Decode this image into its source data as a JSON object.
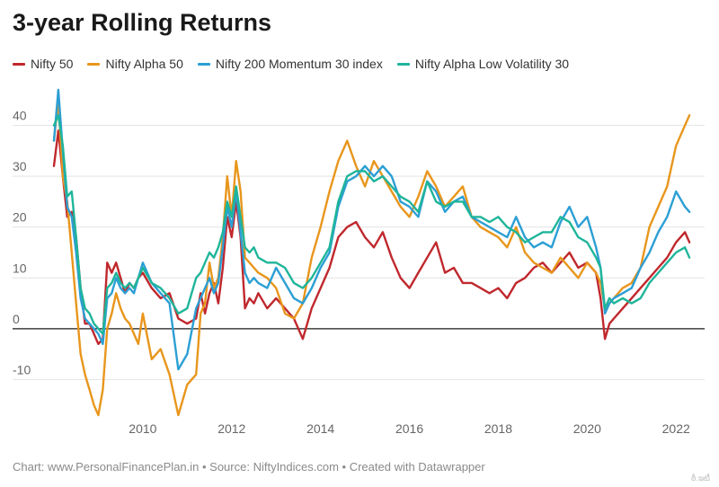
{
  "chart_data": {
    "type": "line",
    "title": "3-year Rolling Returns",
    "xlabel": "",
    "ylabel": "",
    "xlim": [
      2008.0,
      2022.4
    ],
    "ylim": [
      -17,
      47
    ],
    "yticks": [
      -10,
      0,
      10,
      20,
      30,
      40
    ],
    "xticks": [
      2010,
      2012,
      2014,
      2016,
      2018,
      2020,
      2022
    ],
    "grid": true,
    "legend_position": "top-left",
    "series": [
      {
        "name": "Nifty 50",
        "color": "#c0282d",
        "x": [
          2008.0,
          2008.1,
          2008.2,
          2008.3,
          2008.4,
          2008.5,
          2008.6,
          2008.7,
          2008.8,
          2008.9,
          2009.0,
          2009.1,
          2009.2,
          2009.3,
          2009.4,
          2009.5,
          2009.6,
          2009.7,
          2009.8,
          2009.9,
          2010.0,
          2010.2,
          2010.4,
          2010.6,
          2010.8,
          2011.0,
          2011.2,
          2011.3,
          2011.4,
          2011.5,
          2011.6,
          2011.7,
          2011.8,
          2011.9,
          2012.0,
          2012.1,
          2012.2,
          2012.3,
          2012.4,
          2012.5,
          2012.6,
          2012.8,
          2013.0,
          2013.2,
          2013.4,
          2013.6,
          2013.8,
          2014.0,
          2014.2,
          2014.4,
          2014.6,
          2014.8,
          2015.0,
          2015.2,
          2015.4,
          2015.6,
          2015.8,
          2016.0,
          2016.2,
          2016.4,
          2016.6,
          2016.8,
          2017.0,
          2017.2,
          2017.4,
          2017.6,
          2017.8,
          2018.0,
          2018.2,
          2018.4,
          2018.6,
          2018.8,
          2019.0,
          2019.2,
          2019.4,
          2019.6,
          2019.8,
          2020.0,
          2020.2,
          2020.3,
          2020.4,
          2020.5,
          2020.6,
          2020.8,
          2021.0,
          2021.2,
          2021.4,
          2021.6,
          2021.8,
          2022.0,
          2022.2,
          2022.3
        ],
        "values": [
          32,
          39,
          30,
          22,
          23,
          18,
          8,
          1,
          1,
          -1,
          -3,
          -2,
          13,
          11,
          13,
          10,
          7,
          9,
          8,
          10,
          11,
          8,
          6,
          7,
          2,
          1,
          2,
          7,
          3,
          7,
          9,
          5,
          12,
          22,
          18,
          25,
          18,
          4,
          6,
          5,
          7,
          4,
          6,
          4,
          2,
          -2,
          4,
          8,
          12,
          18,
          20,
          21,
          18,
          16,
          19,
          14,
          10,
          8,
          11,
          14,
          17,
          11,
          12,
          9,
          9,
          8,
          7,
          8,
          6,
          9,
          10,
          12,
          13,
          11,
          13,
          15,
          12,
          13,
          11,
          6,
          -2,
          1,
          2,
          4,
          6,
          8,
          10,
          12,
          14,
          17,
          19,
          17
        ]
      },
      {
        "name": "Nifty Alpha 50",
        "color": "#e8961c",
        "x": [
          2008.0,
          2008.1,
          2008.2,
          2008.3,
          2008.4,
          2008.5,
          2008.6,
          2008.7,
          2008.8,
          2008.9,
          2009.0,
          2009.1,
          2009.2,
          2009.3,
          2009.4,
          2009.5,
          2009.6,
          2009.7,
          2009.8,
          2009.9,
          2010.0,
          2010.2,
          2010.4,
          2010.6,
          2010.8,
          2011.0,
          2011.2,
          2011.3,
          2011.4,
          2011.5,
          2011.6,
          2011.7,
          2011.8,
          2011.9,
          2012.0,
          2012.1,
          2012.2,
          2012.3,
          2012.4,
          2012.5,
          2012.6,
          2012.8,
          2013.0,
          2013.2,
          2013.4,
          2013.6,
          2013.8,
          2014.0,
          2014.2,
          2014.4,
          2014.6,
          2014.8,
          2015.0,
          2015.2,
          2015.4,
          2015.6,
          2015.8,
          2016.0,
          2016.2,
          2016.4,
          2016.6,
          2016.8,
          2017.0,
          2017.2,
          2017.4,
          2017.6,
          2017.8,
          2018.0,
          2018.2,
          2018.4,
          2018.6,
          2018.8,
          2019.0,
          2019.2,
          2019.4,
          2019.6,
          2019.8,
          2020.0,
          2020.2,
          2020.3,
          2020.4,
          2020.5,
          2020.6,
          2020.8,
          2021.0,
          2021.2,
          2021.4,
          2021.6,
          2021.8,
          2022.0,
          2022.2,
          2022.3
        ],
        "values": [
          37,
          45,
          30,
          25,
          15,
          5,
          -5,
          -9,
          -12,
          -15,
          -17,
          -12,
          0,
          3,
          7,
          4,
          2,
          1,
          -1,
          -3,
          3,
          -6,
          -4,
          -9,
          -17,
          -11,
          -9,
          3,
          5,
          13,
          8,
          10,
          18,
          30,
          22,
          33,
          27,
          14,
          13,
          12,
          11,
          10,
          8,
          3,
          2,
          5,
          14,
          20,
          27,
          33,
          37,
          32,
          28,
          33,
          30,
          27,
          24,
          22,
          26,
          31,
          28,
          24,
          26,
          28,
          22,
          20,
          19,
          18,
          16,
          20,
          15,
          13,
          12,
          11,
          14,
          12,
          10,
          13,
          11,
          9,
          4,
          5,
          6,
          8,
          9,
          12,
          20,
          24,
          28,
          36,
          40,
          42
        ]
      },
      {
        "name": "Nifty 200 Momentum 30 index",
        "color": "#2c9fd4",
        "x": [
          2008.0,
          2008.1,
          2008.2,
          2008.3,
          2008.4,
          2008.5,
          2008.6,
          2008.7,
          2008.8,
          2008.9,
          2009.0,
          2009.1,
          2009.2,
          2009.3,
          2009.4,
          2009.5,
          2009.6,
          2009.7,
          2009.8,
          2009.9,
          2010.0,
          2010.2,
          2010.4,
          2010.6,
          2010.8,
          2011.0,
          2011.2,
          2011.3,
          2011.4,
          2011.5,
          2011.6,
          2011.7,
          2011.8,
          2011.9,
          2012.0,
          2012.1,
          2012.2,
          2012.3,
          2012.4,
          2012.5,
          2012.6,
          2012.8,
          2013.0,
          2013.2,
          2013.4,
          2013.6,
          2013.8,
          2014.0,
          2014.2,
          2014.4,
          2014.6,
          2014.8,
          2015.0,
          2015.2,
          2015.4,
          2015.6,
          2015.8,
          2016.0,
          2016.2,
          2016.4,
          2016.6,
          2016.8,
          2017.0,
          2017.2,
          2017.4,
          2017.6,
          2017.8,
          2018.0,
          2018.2,
          2018.4,
          2018.6,
          2018.8,
          2019.0,
          2019.2,
          2019.4,
          2019.6,
          2019.8,
          2020.0,
          2020.2,
          2020.3,
          2020.4,
          2020.5,
          2020.6,
          2020.8,
          2021.0,
          2021.2,
          2021.4,
          2021.6,
          2021.8,
          2022.0,
          2022.2,
          2022.3
        ],
        "values": [
          37,
          47,
          35,
          24,
          22,
          15,
          6,
          2,
          1,
          0,
          -1,
          -3,
          6,
          7,
          10,
          8,
          7,
          8,
          7,
          10,
          13,
          9,
          7,
          5,
          -8,
          -5,
          4,
          6,
          8,
          10,
          7,
          9,
          16,
          24,
          20,
          27,
          19,
          11,
          9,
          10,
          9,
          8,
          12,
          9,
          6,
          5,
          8,
          12,
          15,
          24,
          29,
          30,
          32,
          30,
          32,
          30,
          25,
          24,
          22,
          29,
          27,
          23,
          25,
          26,
          22,
          21,
          20,
          19,
          18,
          22,
          18,
          16,
          17,
          16,
          21,
          24,
          20,
          22,
          16,
          12,
          3,
          5,
          6,
          7,
          8,
          12,
          15,
          19,
          22,
          27,
          24,
          23
        ]
      },
      {
        "name": "Nifty Alpha Low Volatility 30",
        "color": "#1fb59a",
        "x": [
          2008.0,
          2008.1,
          2008.2,
          2008.3,
          2008.4,
          2008.5,
          2008.6,
          2008.7,
          2008.8,
          2008.9,
          2009.0,
          2009.1,
          2009.2,
          2009.3,
          2009.4,
          2009.5,
          2009.6,
          2009.7,
          2009.8,
          2009.9,
          2010.0,
          2010.2,
          2010.4,
          2010.6,
          2010.8,
          2011.0,
          2011.2,
          2011.3,
          2011.4,
          2011.5,
          2011.6,
          2011.7,
          2011.8,
          2011.9,
          2012.0,
          2012.1,
          2012.2,
          2012.3,
          2012.4,
          2012.5,
          2012.6,
          2012.8,
          2013.0,
          2013.2,
          2013.4,
          2013.6,
          2013.8,
          2014.0,
          2014.2,
          2014.4,
          2014.6,
          2014.8,
          2015.0,
          2015.2,
          2015.4,
          2015.6,
          2015.8,
          2016.0,
          2016.2,
          2016.4,
          2016.6,
          2016.8,
          2017.0,
          2017.2,
          2017.4,
          2017.6,
          2017.8,
          2018.0,
          2018.2,
          2018.4,
          2018.6,
          2018.8,
          2019.0,
          2019.2,
          2019.4,
          2019.6,
          2019.8,
          2020.0,
          2020.2,
          2020.3,
          2020.4,
          2020.5,
          2020.6,
          2020.8,
          2021.0,
          2021.2,
          2021.4,
          2021.6,
          2021.8,
          2022.0,
          2022.2,
          2022.3
        ],
        "values": [
          40,
          42,
          36,
          26,
          27,
          18,
          8,
          4,
          3,
          1,
          0,
          -1,
          8,
          9,
          11,
          9,
          8,
          9,
          8,
          10,
          12,
          9,
          8,
          6,
          3,
          4,
          10,
          11,
          13,
          15,
          14,
          16,
          19,
          25,
          22,
          28,
          22,
          16,
          15,
          16,
          14,
          13,
          13,
          12,
          9,
          8,
          10,
          13,
          16,
          25,
          30,
          31,
          31,
          29,
          30,
          28,
          26,
          25,
          23,
          29,
          25,
          24,
          25,
          25,
          22,
          22,
          21,
          22,
          20,
          19,
          17,
          18,
          19,
          19,
          22,
          21,
          18,
          17,
          14,
          12,
          4,
          6,
          5,
          6,
          5,
          6,
          9,
          11,
          13,
          15,
          16,
          14
        ]
      }
    ]
  },
  "footer_text": "Chart: www.PersonalFinancePlan.in • Source: NiftyIndices.com • Created with Datawrapper",
  "watermark": "ఠీ.ఇటీ"
}
